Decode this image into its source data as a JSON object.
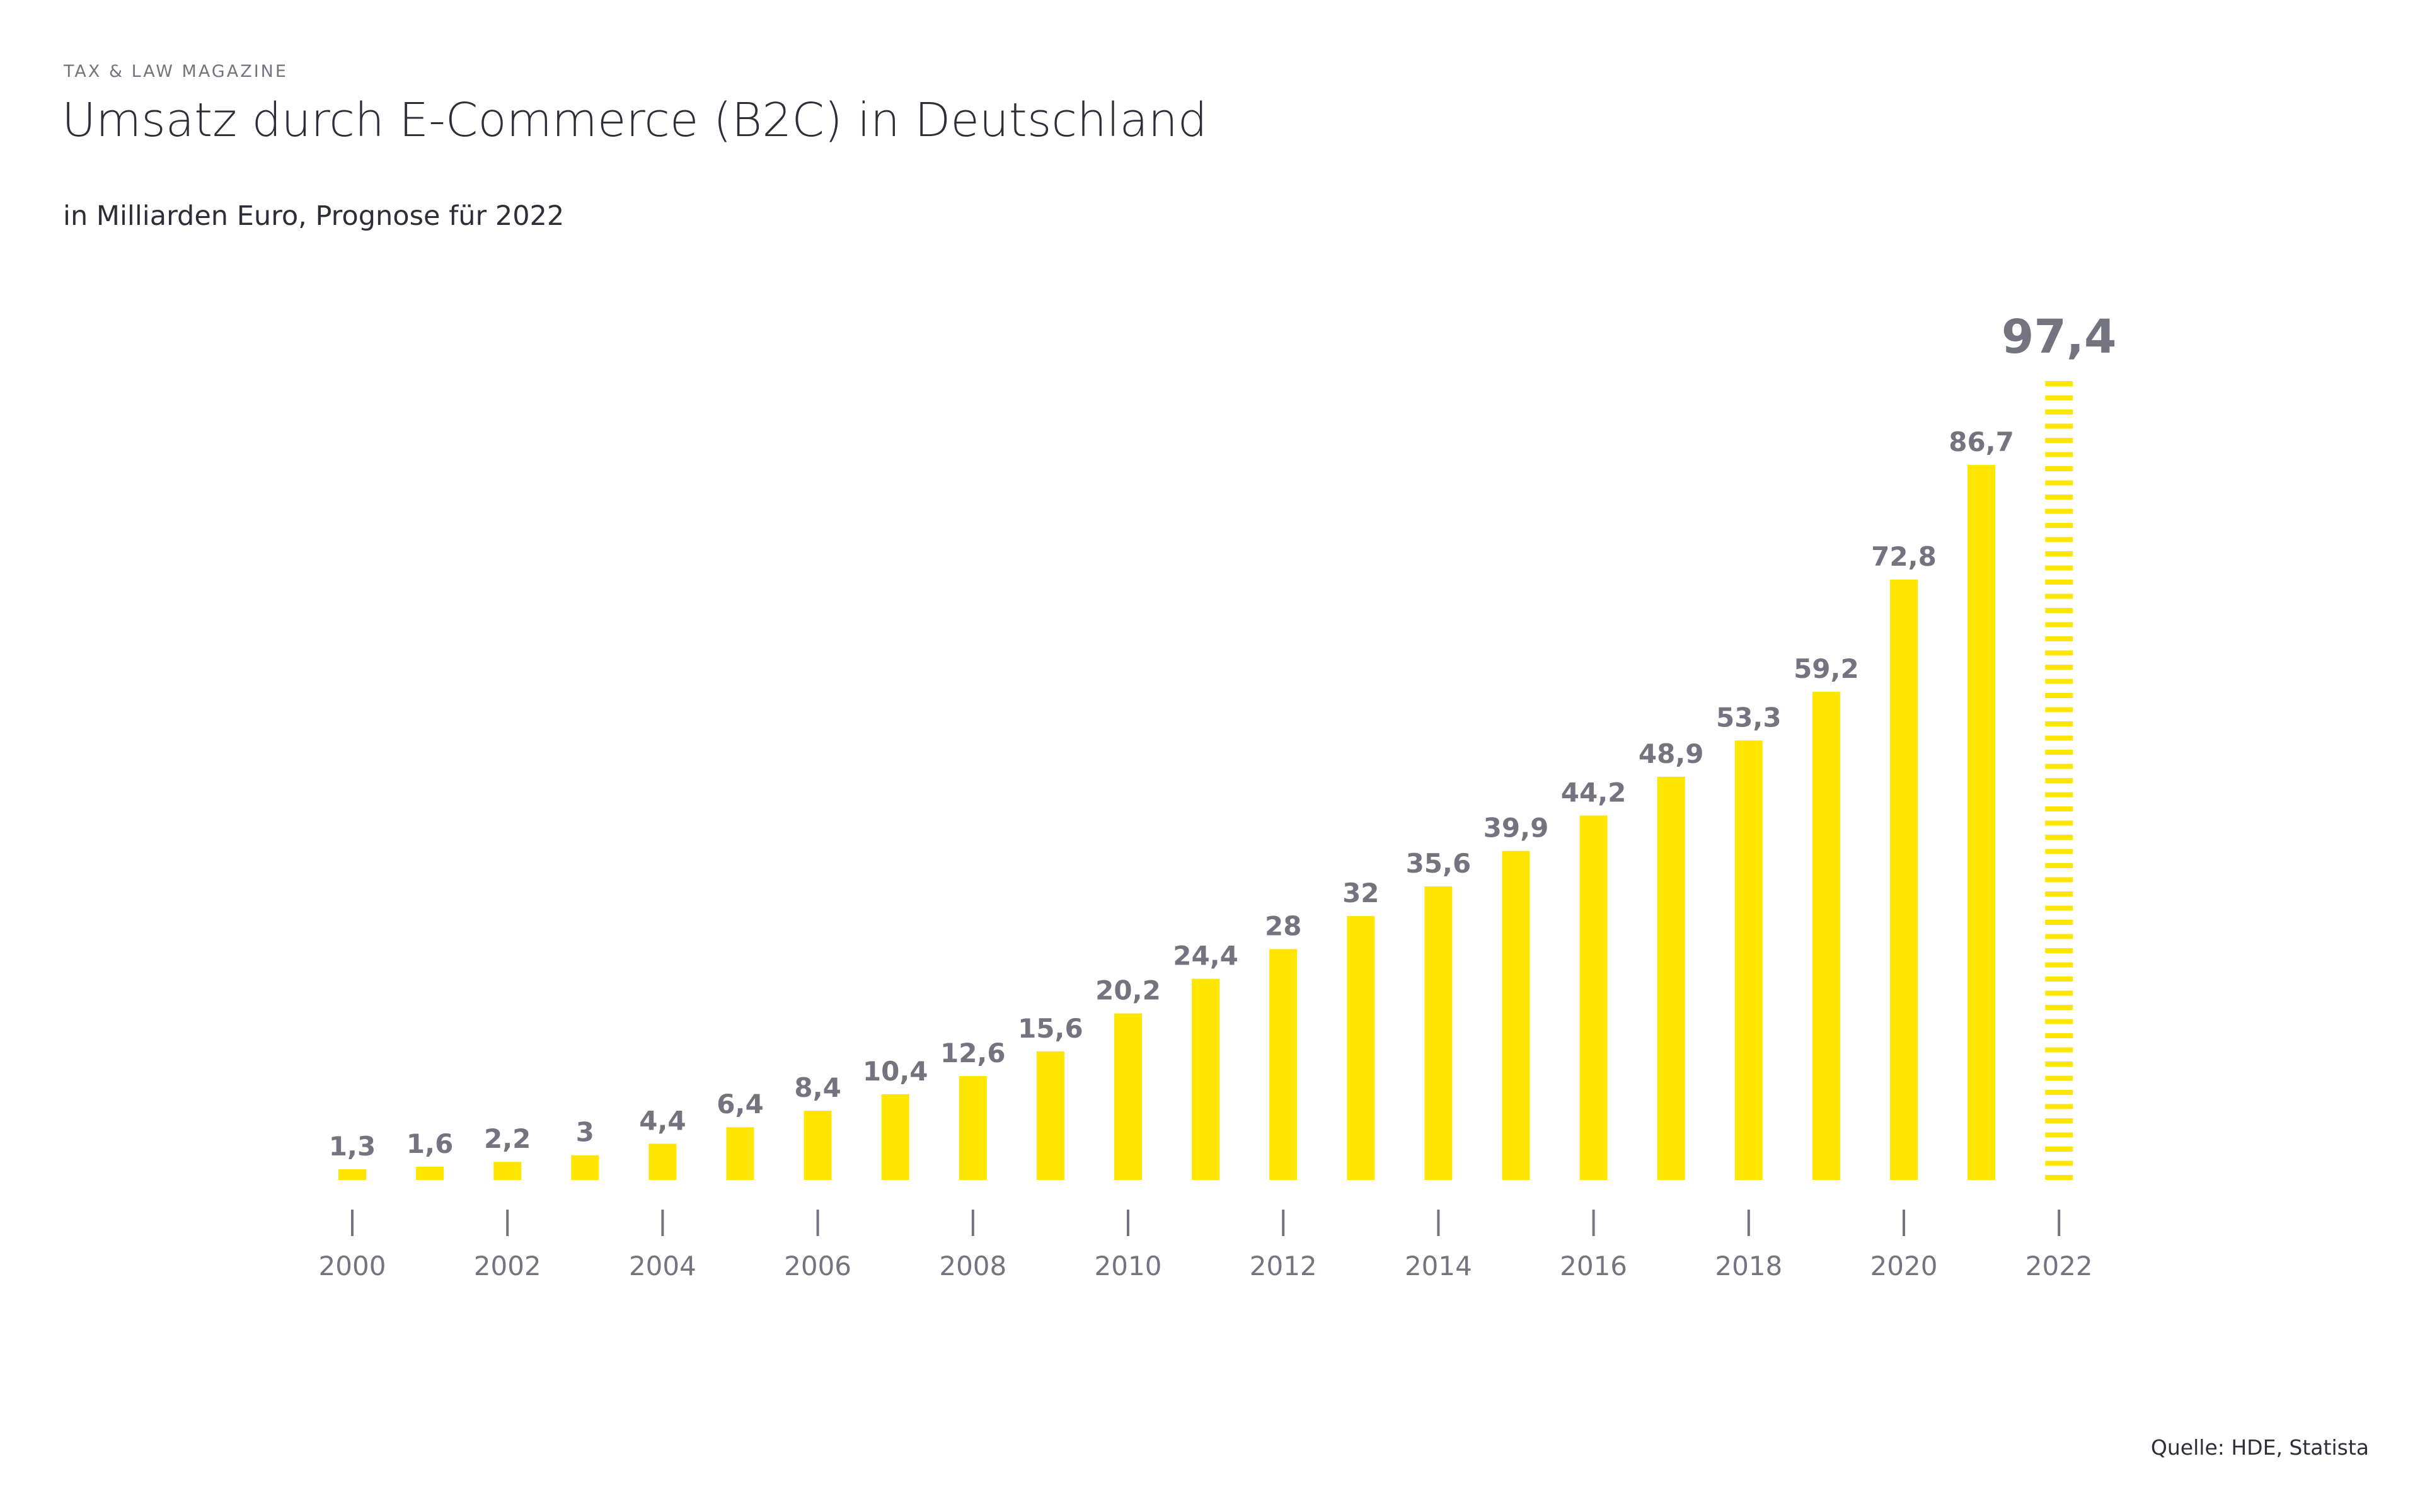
{
  "header": {
    "kicker": "TAX & LAW MAGAZINE",
    "title": "Umsatz durch E-Commerce (B2C) in Deutschland",
    "subtitle": "in Milliarden Euro, Prognose für 2022"
  },
  "footer": {
    "source": "Quelle: HDE, Statista"
  },
  "chart_data": {
    "type": "bar",
    "title": "Umsatz durch E-Commerce (B2C) in Deutschland",
    "subtitle": "in Milliarden Euro, Prognose für 2022",
    "categories": [
      "2000",
      "2001",
      "2002",
      "2003",
      "2004",
      "2005",
      "2006",
      "2007",
      "2008",
      "2009",
      "2010",
      "2011",
      "2012",
      "2013",
      "2014",
      "2015",
      "2016",
      "2017",
      "2018",
      "2019",
      "2020",
      "2021",
      "2022"
    ],
    "values": [
      1.3,
      1.6,
      2.2,
      3,
      4.4,
      6.4,
      8.4,
      10.4,
      12.6,
      15.6,
      20.2,
      24.4,
      28,
      32,
      35.6,
      39.9,
      44.2,
      48.9,
      53.3,
      59.2,
      72.8,
      86.7,
      97.4
    ],
    "value_labels": [
      "1,3",
      "1,6",
      "2,2",
      "3",
      "4,4",
      "6,4",
      "8,4",
      "10,4",
      "12,6",
      "15,6",
      "20,2",
      "24,4",
      "28",
      "32",
      "35,6",
      "39,9",
      "44,2",
      "48,9",
      "53,3",
      "59,2",
      "72,8",
      "86,7",
      "97,4"
    ],
    "tick_labels": [
      "2000",
      "2002",
      "2004",
      "2006",
      "2008",
      "2010",
      "2012",
      "2014",
      "2016",
      "2018",
      "2020",
      "2022"
    ],
    "forecast_index": 22,
    "forecast_style": "dashed",
    "ylim": [
      0,
      100
    ],
    "grid": false,
    "colors": {
      "bar": "#FFE600",
      "label": "#747480",
      "text": "#2E2E38"
    }
  }
}
